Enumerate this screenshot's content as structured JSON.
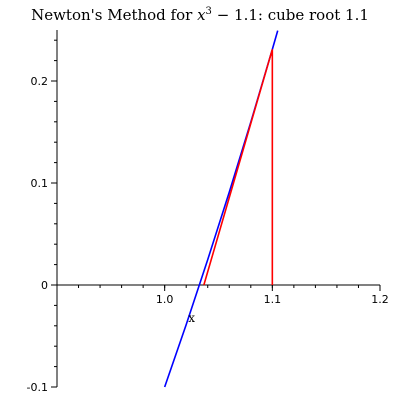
{
  "title": {
    "prefix": "Newton's Method for ",
    "var": "x",
    "exponent": "3",
    "suffix": " − 1.1: cube root 1.1"
  },
  "chart_data": {
    "type": "line",
    "xlabel": "x",
    "ylabel": "",
    "xlim": [
      0.9,
      1.2
    ],
    "ylim": [
      -0.1,
      0.25
    ],
    "x_ticks": [
      1.0,
      1.1,
      1.2
    ],
    "x_tick_labels": [
      "1.0",
      "1.1",
      "1.2"
    ],
    "y_ticks": [
      -0.1,
      0,
      0.1,
      0.2
    ],
    "y_tick_labels": [
      "-0.1",
      "0",
      "0.1",
      "0.2"
    ],
    "grid": false,
    "series": [
      {
        "color": "#0000ff",
        "x": [
          1.0,
          1.02,
          1.04,
          1.06,
          1.08,
          1.1,
          1.105
        ],
        "y": [
          -0.1,
          -0.0388,
          0.0249,
          0.091,
          0.1597,
          0.231,
          0.2494
        ]
      },
      {
        "color": "#ff0000",
        "x": [
          1.1,
          1.1,
          1.0364
        ],
        "y": [
          0.0,
          0.231,
          0.0
        ]
      }
    ]
  }
}
